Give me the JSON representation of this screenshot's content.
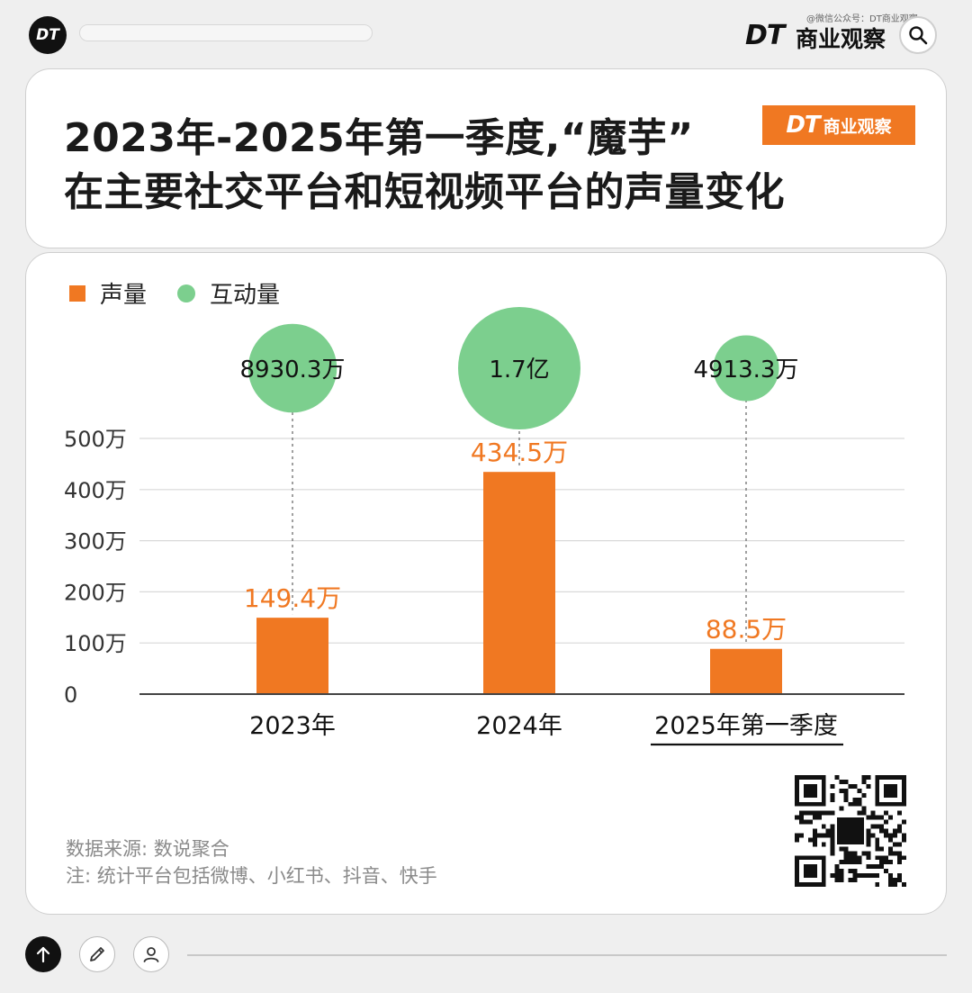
{
  "header": {
    "logo": "DT",
    "wechat_note": "@微信公众号：DT商业观察",
    "brand_mark": "DT",
    "brand_name": "商业观察"
  },
  "title": {
    "line1": "2023年-2025年第一季度,“魔芋”",
    "line2": "在主要社交平台和短视频平台的声量变化",
    "badge_mark": "DT",
    "badge_text": "商业观察"
  },
  "legend": {
    "volume": "声量",
    "interaction": "互动量"
  },
  "colors": {
    "volume": "#f07822",
    "interaction": "#7ccf8e",
    "axis": "#444444",
    "grid": "#d9d9d9"
  },
  "chart_data": {
    "type": "bar",
    "title": "2023年-2025年第一季度,“魔芋”在主要社交平台和短视频平台的声量变化",
    "categories": [
      "2023年",
      "2024年",
      "2025年第一季度"
    ],
    "y_ticks": [
      "0",
      "100万",
      "200万",
      "300万",
      "400万",
      "500万"
    ],
    "ylim": [
      0,
      500
    ],
    "y_unit": "万",
    "series": [
      {
        "name": "声量",
        "type": "bar",
        "values": [
          149.4,
          434.5,
          88.5
        ],
        "labels": [
          "149.4万",
          "434.5万",
          "88.5万"
        ]
      },
      {
        "name": "互动量",
        "type": "bubble",
        "values": [
          8930.3,
          17000,
          4913.3
        ],
        "labels": [
          "8930.3万",
          "1.7亿",
          "4913.3万"
        ]
      }
    ],
    "grid": true,
    "legend_position": "top-left"
  },
  "footer": {
    "source": "数据来源: 数说聚合",
    "note": "注: 统计平台包括微博、小红书、抖音、快手"
  },
  "toolbar": {
    "icons": [
      "arrow-up-icon",
      "pencil-icon",
      "user-icon"
    ]
  }
}
